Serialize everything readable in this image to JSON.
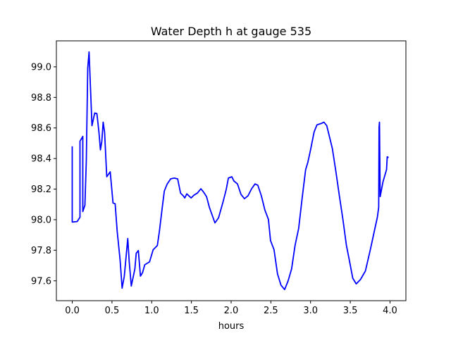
{
  "chart_data": {
    "type": "line",
    "title": "Water Depth h at gauge 535",
    "xlabel": "hours",
    "ylabel": "",
    "xlim": [
      -0.2,
      4.2
    ],
    "ylim": [
      97.47,
      99.17
    ],
    "grid": false,
    "xticks": [
      0.0,
      0.5,
      1.0,
      1.5,
      2.0,
      2.5,
      3.0,
      3.5,
      4.0
    ],
    "xtick_labels": [
      "0.0",
      "0.5",
      "1.0",
      "1.5",
      "2.0",
      "2.5",
      "3.0",
      "3.5",
      "4.0"
    ],
    "yticks": [
      97.6,
      97.8,
      98.0,
      98.2,
      98.4,
      98.6,
      98.8,
      99.0
    ],
    "ytick_labels": [
      "97.6",
      "97.8",
      "98.0",
      "98.2",
      "98.4",
      "98.6",
      "98.8",
      "99.0"
    ],
    "series": [
      {
        "name": "h",
        "color": "#0000ff",
        "x": [
          0.0,
          0.0,
          0.062,
          0.097,
          0.097,
          0.133,
          0.133,
          0.159,
          0.177,
          0.195,
          0.212,
          0.23,
          0.248,
          0.283,
          0.31,
          0.336,
          0.354,
          0.372,
          0.389,
          0.407,
          0.434,
          0.478,
          0.513,
          0.54,
          0.566,
          0.602,
          0.628,
          0.655,
          0.699,
          0.717,
          0.743,
          0.788,
          0.805,
          0.832,
          0.858,
          0.885,
          0.912,
          0.973,
          1.018,
          1.071,
          1.097,
          1.133,
          1.159,
          1.195,
          1.239,
          1.283,
          1.327,
          1.363,
          1.398,
          1.416,
          1.442,
          1.496,
          1.531,
          1.575,
          1.619,
          1.655,
          1.69,
          1.726,
          1.796,
          1.841,
          1.894,
          1.938,
          1.965,
          2.009,
          2.035,
          2.08,
          2.124,
          2.168,
          2.212,
          2.257,
          2.301,
          2.336,
          2.381,
          2.425,
          2.469,
          2.496,
          2.54,
          2.584,
          2.628,
          2.673,
          2.717,
          2.761,
          2.805,
          2.85,
          2.894,
          2.938,
          2.965,
          3.0,
          3.044,
          3.08,
          3.133,
          3.168,
          3.204,
          3.274,
          3.319,
          3.363,
          3.407,
          3.451,
          3.487,
          3.531,
          3.575,
          3.628,
          3.69,
          3.752,
          3.796,
          3.841,
          3.858,
          3.862,
          3.867,
          3.876,
          3.912,
          3.956,
          3.965,
          3.982
        ],
        "y": [
          98.48,
          97.984,
          97.988,
          98.016,
          98.513,
          98.545,
          98.053,
          98.095,
          98.388,
          98.991,
          99.097,
          98.852,
          98.615,
          98.698,
          98.694,
          98.573,
          98.457,
          98.513,
          98.638,
          98.573,
          98.281,
          98.313,
          98.109,
          98.104,
          97.924,
          97.738,
          97.552,
          97.631,
          97.877,
          97.724,
          97.566,
          97.678,
          97.78,
          97.798,
          97.631,
          97.654,
          97.705,
          97.724,
          97.803,
          97.831,
          97.924,
          98.081,
          98.188,
          98.234,
          98.267,
          98.272,
          98.267,
          98.174,
          98.156,
          98.142,
          98.169,
          98.142,
          98.16,
          98.174,
          98.202,
          98.179,
          98.151,
          98.081,
          97.979,
          98.012,
          98.109,
          98.197,
          98.272,
          98.281,
          98.253,
          98.234,
          98.165,
          98.137,
          98.156,
          98.202,
          98.234,
          98.225,
          98.156,
          98.063,
          98.002,
          97.863,
          97.803,
          97.645,
          97.571,
          97.543,
          97.599,
          97.678,
          97.831,
          97.942,
          98.142,
          98.327,
          98.374,
          98.457,
          98.573,
          98.62,
          98.629,
          98.638,
          98.615,
          98.466,
          98.313,
          98.156,
          98.002,
          97.831,
          97.738,
          97.617,
          97.58,
          97.608,
          97.664,
          97.803,
          97.91,
          98.016,
          98.081,
          98.606,
          98.638,
          98.151,
          98.248,
          98.327,
          98.411,
          98.406
        ]
      }
    ]
  }
}
